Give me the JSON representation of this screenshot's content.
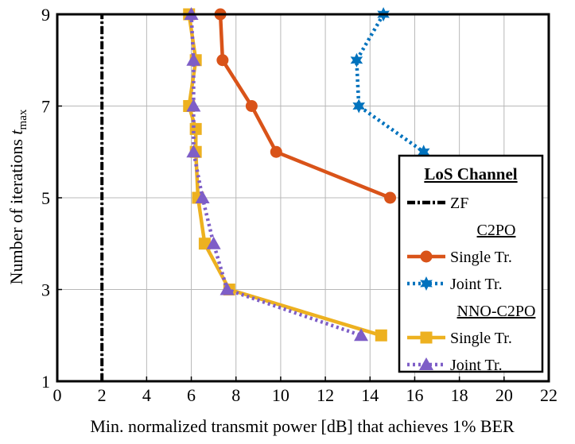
{
  "chart_data": {
    "type": "line",
    "title": "",
    "xlabel": "Min. normalized transmit power [dB] that achieves 1% BER",
    "ylabel_main": "Number of iterations ",
    "ylabel_var": "t",
    "ylabel_sub": "max",
    "xlim": [
      0,
      22
    ],
    "ylim": [
      1,
      9
    ],
    "xticks": [
      0,
      2,
      4,
      6,
      8,
      10,
      12,
      14,
      16,
      18,
      20,
      22
    ],
    "yticks": [
      1,
      3,
      5,
      7,
      9
    ],
    "grid": true,
    "legend_position": "right",
    "legend": {
      "title": "LoS Channel",
      "groups": [
        {
          "name": "",
          "entries": [
            {
              "series": "zf",
              "label": "ZF"
            }
          ]
        },
        {
          "name": "C2PO",
          "entries": [
            {
              "series": "c2po_single",
              "label": "Single Tr."
            },
            {
              "series": "c2po_joint",
              "label": "Joint Tr."
            }
          ]
        },
        {
          "name": "NNO-C2PO",
          "entries": [
            {
              "series": "nno_single",
              "label": "Single Tr."
            },
            {
              "series": "nno_joint",
              "label": "Joint Tr."
            }
          ]
        }
      ]
    },
    "series": [
      {
        "id": "zf",
        "color": "#000000",
        "dash": "dashdot",
        "marker": "none",
        "x": [
          2,
          2
        ],
        "y": [
          1,
          9
        ]
      },
      {
        "id": "c2po_single",
        "color": "#D95319",
        "dash": "solid",
        "marker": "circle",
        "x": [
          7.3,
          7.4,
          8.7,
          9.8,
          14.9
        ],
        "y": [
          9,
          8,
          7,
          6,
          5
        ]
      },
      {
        "id": "c2po_joint",
        "color": "#0072BD",
        "dash": "dotted",
        "marker": "star",
        "x": [
          14.6,
          13.4,
          13.5,
          16.4
        ],
        "y": [
          9,
          8,
          7,
          6
        ]
      },
      {
        "id": "nno_single",
        "color": "#EDB120",
        "dash": "solid",
        "marker": "square",
        "x": [
          5.9,
          6.2,
          5.9,
          6.2,
          6.2,
          6.3,
          6.6,
          7.7,
          14.5
        ],
        "y": [
          9,
          8,
          7,
          6.5,
          6,
          5,
          4,
          3,
          2
        ]
      },
      {
        "id": "nno_joint",
        "color": "#7E5EC7",
        "dash": "dotted",
        "marker": "triangle",
        "x": [
          6.0,
          6.1,
          6.1,
          6.1,
          6.5,
          7.0,
          7.6,
          13.6
        ],
        "y": [
          9,
          8,
          7,
          6,
          5,
          4,
          3,
          2
        ]
      }
    ]
  }
}
